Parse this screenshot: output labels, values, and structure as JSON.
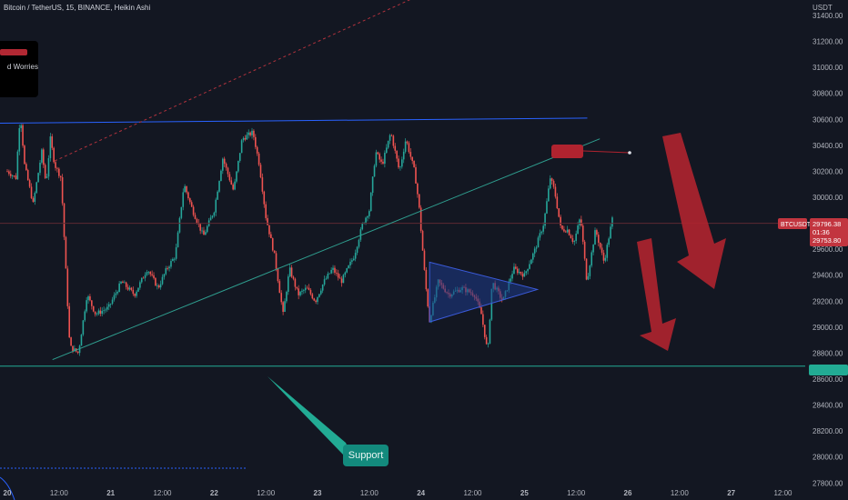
{
  "header": {
    "symbol_line": "Bitcoin / TetherUS, 15, BINANCE, Heikin Ashi",
    "currency": "USDT"
  },
  "news": {
    "title": "d Worries"
  },
  "annotations": {
    "support_label": "Support"
  },
  "colors": {
    "background": "#131722",
    "up_candle": "#26a69a",
    "down_candle": "#ef5350",
    "trendline": "#2f9e8f",
    "resistance": "#2962ff",
    "triangle_fill": "#1e3a8a",
    "arrow": "#b0232f",
    "support_line": "#22ab94",
    "price_tag": "#c2353f"
  },
  "chart_data": {
    "type": "candlestick",
    "style": "Heikin Ashi",
    "timeframe": "15",
    "y_axis": {
      "ticks": [
        "31400.00",
        "31200.00",
        "31000.00",
        "30800.00",
        "30600.00",
        "30400.00",
        "30200.00",
        "30000.00",
        "29800.00",
        "29600.00",
        "29400.00",
        "29200.00",
        "29000.00",
        "28800.00",
        "28600.00",
        "28400.00",
        "28200.00",
        "28000.00",
        "27800.00"
      ],
      "tick_values": [
        31400,
        31200,
        31000,
        30800,
        30600,
        30400,
        30200,
        30000,
        29800,
        29600,
        29400,
        29200,
        29000,
        28800,
        28600,
        28400,
        28200,
        28000,
        27800
      ],
      "range": [
        27700,
        31500
      ]
    },
    "x_axis": {
      "ticks": [
        "20",
        "12:00",
        "21",
        "12:00",
        "22",
        "12:00",
        "23",
        "12:00",
        "24",
        "12:00",
        "25",
        "12:00",
        "26",
        "12:00",
        "27",
        "12:00"
      ],
      "tick_hours": [
        0,
        12,
        24,
        36,
        48,
        60,
        72,
        84,
        96,
        108,
        120,
        132,
        144,
        156,
        168,
        180
      ]
    },
    "price_path": [
      {
        "t": 0,
        "p": 30200
      },
      {
        "t": 2,
        "p": 30150
      },
      {
        "t": 3,
        "p": 30650
      },
      {
        "t": 4,
        "p": 30250
      },
      {
        "t": 6,
        "p": 29950
      },
      {
        "t": 8,
        "p": 30350
      },
      {
        "t": 9,
        "p": 30100
      },
      {
        "t": 10,
        "p": 30450
      },
      {
        "t": 11,
        "p": 30250
      },
      {
        "t": 12.5,
        "p": 30150
      },
      {
        "t": 14.5,
        "p": 28850
      },
      {
        "t": 16.5,
        "p": 28800
      },
      {
        "t": 18.5,
        "p": 29250
      },
      {
        "t": 20.5,
        "p": 29100
      },
      {
        "t": 23.5,
        "p": 29150
      },
      {
        "t": 26.5,
        "p": 29350
      },
      {
        "t": 29.5,
        "p": 29250
      },
      {
        "t": 32.5,
        "p": 29450
      },
      {
        "t": 35,
        "p": 29300
      },
      {
        "t": 37,
        "p": 29450
      },
      {
        "t": 39,
        "p": 29550
      },
      {
        "t": 41,
        "p": 30100
      },
      {
        "t": 43,
        "p": 29900
      },
      {
        "t": 45.5,
        "p": 29700
      },
      {
        "t": 48,
        "p": 29900
      },
      {
        "t": 50,
        "p": 30300
      },
      {
        "t": 52.5,
        "p": 30050
      },
      {
        "t": 54.5,
        "p": 30450
      },
      {
        "t": 57,
        "p": 30500
      },
      {
        "t": 58.5,
        "p": 30250
      },
      {
        "t": 60,
        "p": 29850
      },
      {
        "t": 62,
        "p": 29550
      },
      {
        "t": 64,
        "p": 29100
      },
      {
        "t": 65.5,
        "p": 29450
      },
      {
        "t": 67.5,
        "p": 29250
      },
      {
        "t": 69.5,
        "p": 29300
      },
      {
        "t": 71.5,
        "p": 29200
      },
      {
        "t": 73.5,
        "p": 29350
      },
      {
        "t": 75.5,
        "p": 29450
      },
      {
        "t": 77.5,
        "p": 29350
      },
      {
        "t": 80.5,
        "p": 29550
      },
      {
        "t": 82.5,
        "p": 29800
      },
      {
        "t": 84,
        "p": 29900
      },
      {
        "t": 85.5,
        "p": 30350
      },
      {
        "t": 87,
        "p": 30250
      },
      {
        "t": 89,
        "p": 30500
      },
      {
        "t": 91,
        "p": 30200
      },
      {
        "t": 92.5,
        "p": 30450
      },
      {
        "t": 94.5,
        "p": 30200
      },
      {
        "t": 95.5,
        "p": 29950
      },
      {
        "t": 97,
        "p": 29350
      },
      {
        "t": 98,
        "p": 29050
      },
      {
        "t": 100,
        "p": 29350
      },
      {
        "t": 102.5,
        "p": 29250
      },
      {
        "t": 105.5,
        "p": 29300
      },
      {
        "t": 108.5,
        "p": 29250
      },
      {
        "t": 110,
        "p": 29100
      },
      {
        "t": 111.5,
        "p": 28800
      },
      {
        "t": 112.5,
        "p": 29350
      },
      {
        "t": 115,
        "p": 29200
      },
      {
        "t": 117.5,
        "p": 29450
      },
      {
        "t": 120,
        "p": 29400
      },
      {
        "t": 122.5,
        "p": 29600
      },
      {
        "t": 124.5,
        "p": 29800
      },
      {
        "t": 126,
        "p": 30150
      },
      {
        "t": 127,
        "p": 30050
      },
      {
        "t": 128.5,
        "p": 29750
      },
      {
        "t": 130,
        "p": 29750
      },
      {
        "t": 131.5,
        "p": 29650
      },
      {
        "t": 133,
        "p": 29850
      },
      {
        "t": 134.5,
        "p": 29350
      },
      {
        "t": 136.5,
        "p": 29750
      },
      {
        "t": 138.5,
        "p": 29500
      },
      {
        "t": 140.5,
        "p": 29850
      }
    ],
    "drawings": {
      "resistance_line": [
        {
          "t": -2,
          "p": 30570
        },
        {
          "t": 134.6,
          "p": 30610
        }
      ],
      "rising_trendline": [
        {
          "t": 10.5,
          "p": 28750
        },
        {
          "t": 137.5,
          "p": 30450
        }
      ],
      "dotted_channel": [
        {
          "t": 11,
          "p": 30280
        },
        {
          "t": 96,
          "p": 31560
        }
      ],
      "triangle": [
        {
          "t": 98,
          "p": 29500
        },
        {
          "t": 98,
          "p": 29040
        },
        {
          "t": 123,
          "p": 29290
        }
      ],
      "support_level": 28700,
      "current_price_line": 29800
    },
    "price_labels": {
      "current_price": "29796.38",
      "countdown": "01:36",
      "last_value": "29753.80",
      "symbol_tag": "BTCUSDT"
    },
    "grid": false,
    "legend": "top-left"
  }
}
